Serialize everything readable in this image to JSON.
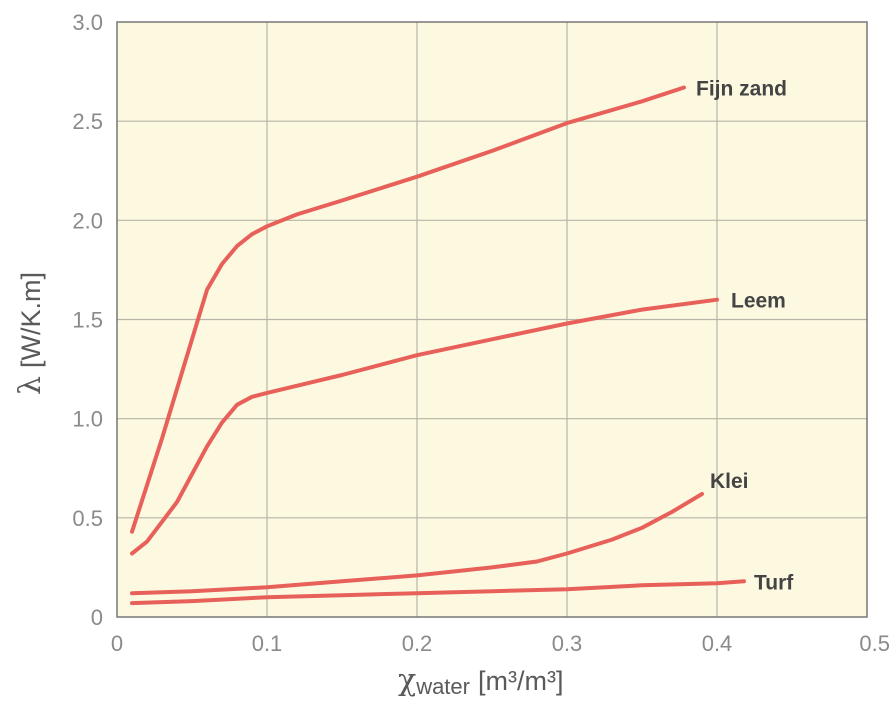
{
  "chart_data": {
    "type": "line",
    "xlim": [
      0,
      0.5
    ],
    "ylim": [
      0,
      3.0
    ],
    "x_ticks": [
      "0",
      "0.1",
      "0.2",
      "0.3",
      "0.4",
      "0.5"
    ],
    "y_ticks": [
      "0",
      "0.5",
      "1.0",
      "1.5",
      "2.0",
      "2.5",
      "3.0"
    ],
    "grid": true,
    "xlabel": {
      "symbol": "χ",
      "sub": "water",
      "unit": "[m³/m³]"
    },
    "ylabel": {
      "symbol": "λ",
      "unit": "[W/K.m]"
    },
    "series": [
      {
        "name": "Fijn zand",
        "color": "#e8605a",
        "points": [
          [
            0.01,
            0.43
          ],
          [
            0.03,
            0.9
          ],
          [
            0.05,
            1.4
          ],
          [
            0.06,
            1.65
          ],
          [
            0.07,
            1.78
          ],
          [
            0.08,
            1.87
          ],
          [
            0.09,
            1.93
          ],
          [
            0.1,
            1.97
          ],
          [
            0.12,
            2.03
          ],
          [
            0.15,
            2.1
          ],
          [
            0.2,
            2.22
          ],
          [
            0.25,
            2.35
          ],
          [
            0.3,
            2.49
          ],
          [
            0.35,
            2.6
          ],
          [
            0.378,
            2.67
          ]
        ]
      },
      {
        "name": "Leem",
        "color": "#e8605a",
        "points": [
          [
            0.01,
            0.32
          ],
          [
            0.02,
            0.38
          ],
          [
            0.03,
            0.48
          ],
          [
            0.04,
            0.58
          ],
          [
            0.05,
            0.72
          ],
          [
            0.06,
            0.86
          ],
          [
            0.07,
            0.98
          ],
          [
            0.08,
            1.07
          ],
          [
            0.09,
            1.11
          ],
          [
            0.1,
            1.13
          ],
          [
            0.15,
            1.22
          ],
          [
            0.2,
            1.32
          ],
          [
            0.25,
            1.4
          ],
          [
            0.3,
            1.48
          ],
          [
            0.35,
            1.55
          ],
          [
            0.4,
            1.6
          ]
        ]
      },
      {
        "name": "Klei",
        "color": "#e8605a",
        "points": [
          [
            0.01,
            0.12
          ],
          [
            0.05,
            0.13
          ],
          [
            0.1,
            0.15
          ],
          [
            0.15,
            0.18
          ],
          [
            0.2,
            0.21
          ],
          [
            0.25,
            0.25
          ],
          [
            0.28,
            0.28
          ],
          [
            0.3,
            0.32
          ],
          [
            0.33,
            0.39
          ],
          [
            0.35,
            0.45
          ],
          [
            0.37,
            0.53
          ],
          [
            0.39,
            0.62
          ]
        ]
      },
      {
        "name": "Turf",
        "color": "#e8605a",
        "points": [
          [
            0.01,
            0.07
          ],
          [
            0.05,
            0.08
          ],
          [
            0.1,
            0.1
          ],
          [
            0.15,
            0.11
          ],
          [
            0.2,
            0.12
          ],
          [
            0.25,
            0.13
          ],
          [
            0.3,
            0.14
          ],
          [
            0.35,
            0.16
          ],
          [
            0.4,
            0.17
          ],
          [
            0.418,
            0.18
          ]
        ]
      }
    ]
  }
}
